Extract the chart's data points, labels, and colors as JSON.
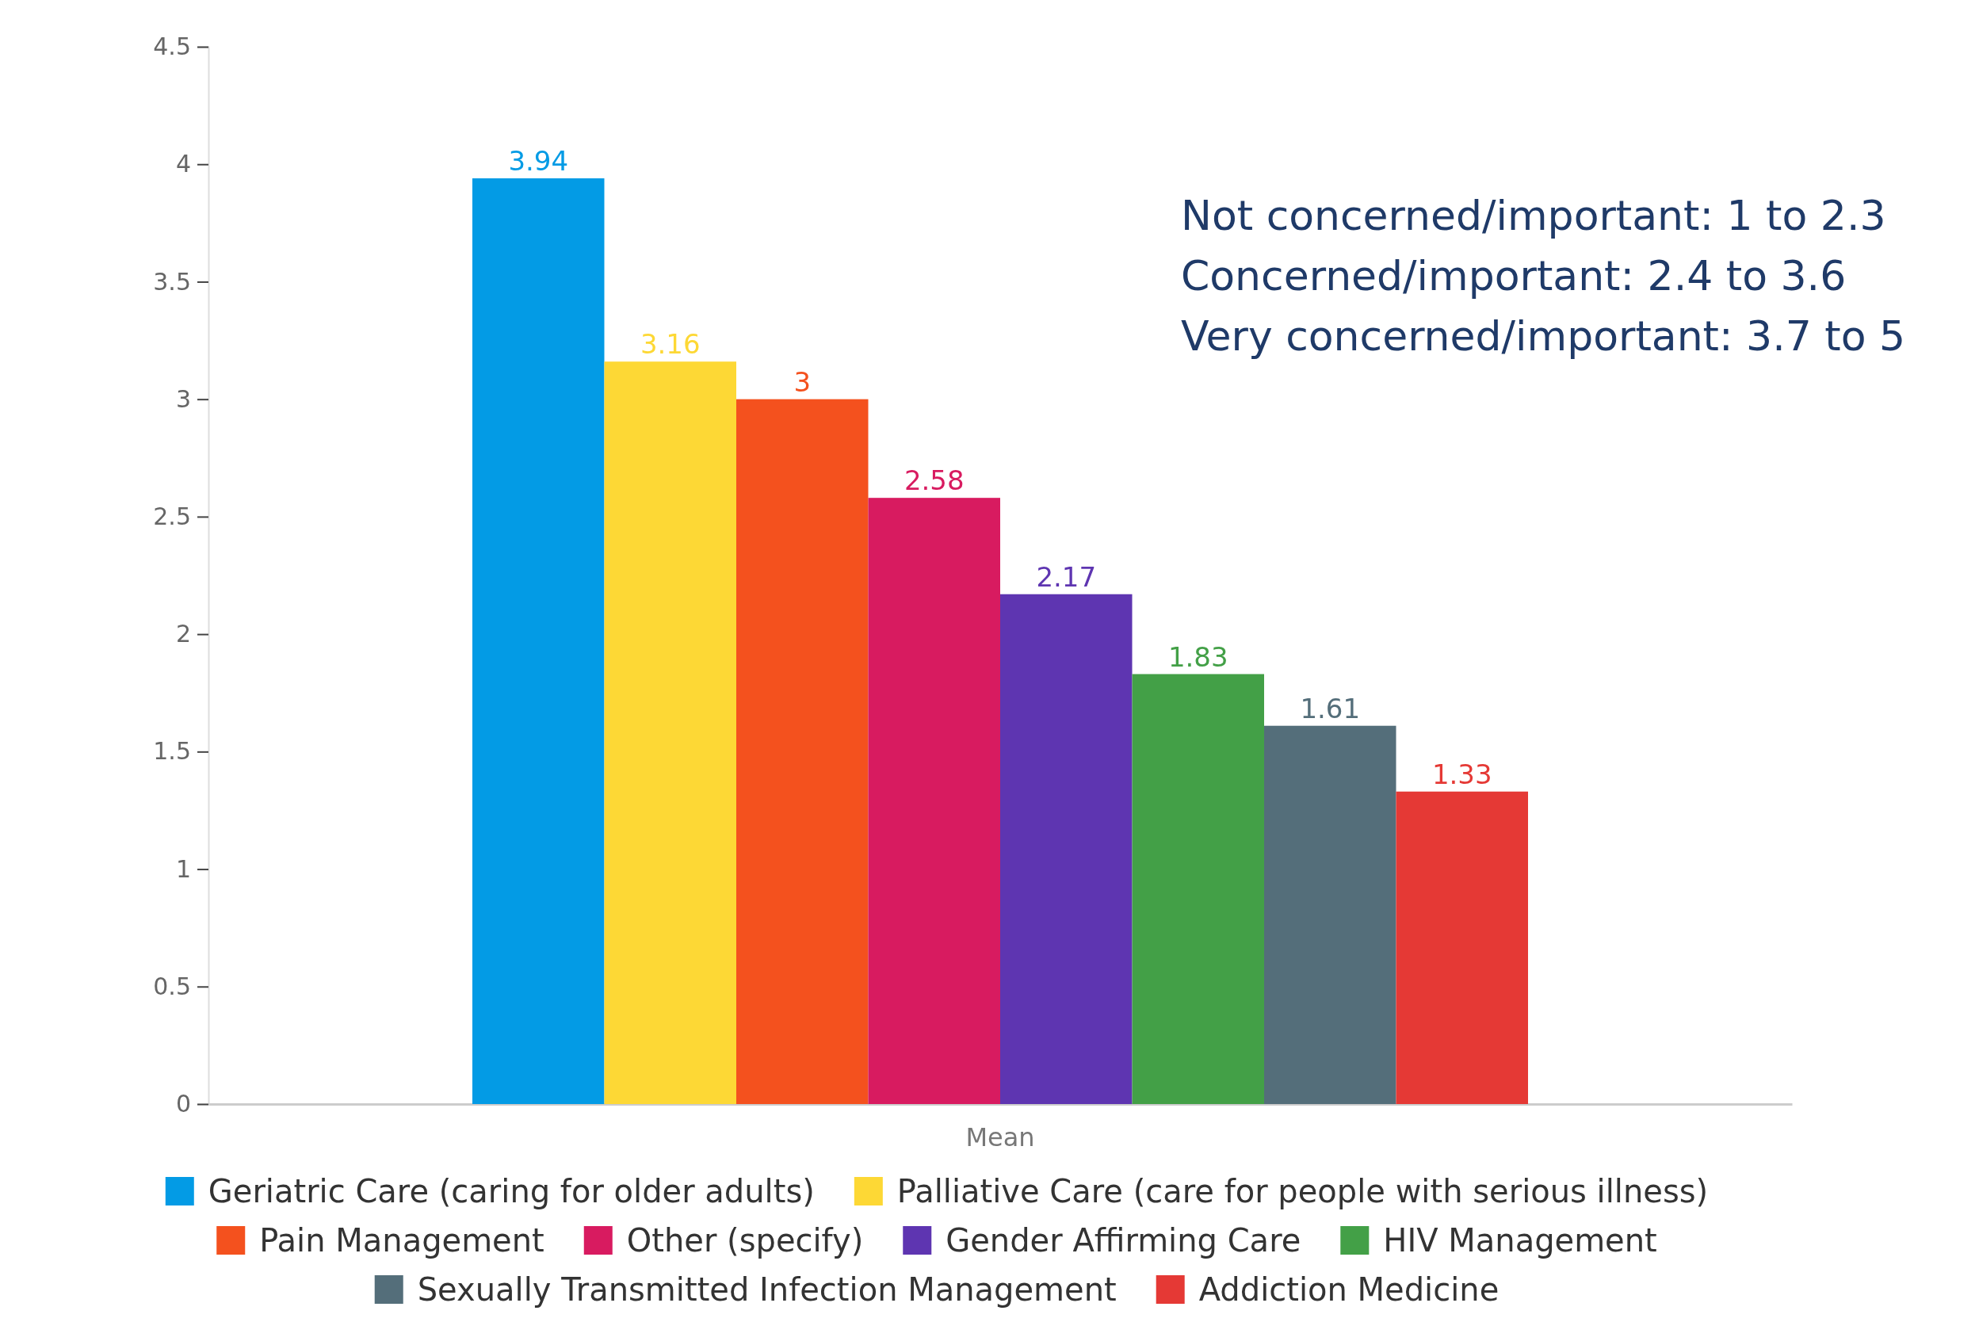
{
  "chart_data": {
    "type": "bar",
    "categories": [
      "Mean"
    ],
    "series": [
      {
        "name": "Geriatric Care (caring for older adults)",
        "color": "#039be5",
        "values": [
          3.94
        ]
      },
      {
        "name": "Palliative Care (care for people with serious illness)",
        "color": "#fdd835",
        "values": [
          3.16
        ]
      },
      {
        "name": "Pain Management",
        "color": "#f4511e",
        "values": [
          3
        ]
      },
      {
        "name": "Other (specify)",
        "color": "#d81b60",
        "values": [
          2.58
        ]
      },
      {
        "name": "Gender Affirming Care",
        "color": "#5e35b1",
        "values": [
          2.17
        ]
      },
      {
        "name": "HIV Management",
        "color": "#43a047",
        "values": [
          1.83
        ]
      },
      {
        "name": "Sexually Transmitted Infection Management",
        "color": "#546e7a",
        "values": [
          1.61
        ]
      },
      {
        "name": "Addiction Medicine",
        "color": "#e53935",
        "values": [
          1.33
        ]
      }
    ],
    "ylim": [
      0,
      4.5
    ],
    "yticks": [
      0,
      0.5,
      1,
      1.5,
      2,
      2.5,
      3,
      3.5,
      4,
      4.5
    ],
    "data_labels": true,
    "legend": "bottom",
    "grid": false,
    "annotations": [
      "Not concerned/important: 1 to 2.3",
      "Concerned/important: 2.4 to 3.6",
      "Very concerned/important: 3.7 to 5"
    ]
  }
}
